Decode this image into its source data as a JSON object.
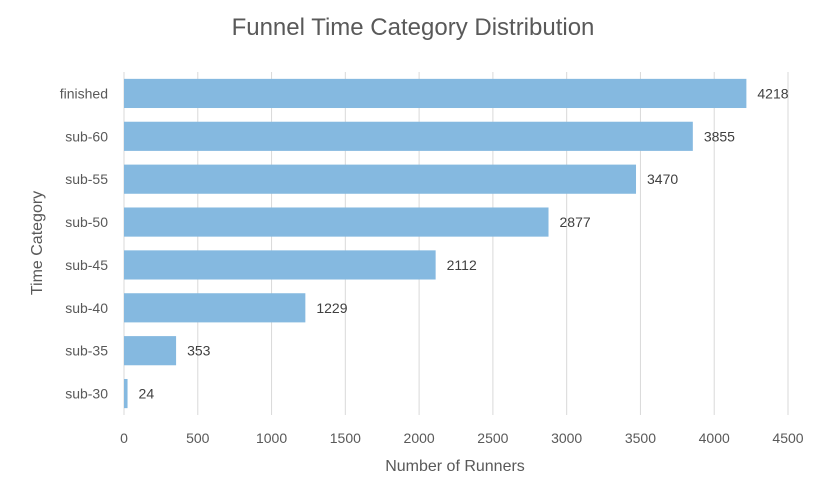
{
  "chart_data": {
    "type": "bar",
    "orientation": "horizontal",
    "title": "Funnel Time Category Distribution",
    "xlabel": "Number of Runners",
    "ylabel": "Time Category",
    "categories": [
      "finished",
      "sub-60",
      "sub-55",
      "sub-50",
      "sub-45",
      "sub-40",
      "sub-35",
      "sub-30"
    ],
    "values": [
      4218,
      3855,
      3470,
      2877,
      2112,
      1229,
      353,
      24
    ],
    "xlim": [
      0,
      4500
    ],
    "xticks": [
      0,
      500,
      1000,
      1500,
      2000,
      2500,
      3000,
      3500,
      4000,
      4500
    ],
    "grid": "vertical",
    "bar_color": "#85b9e0",
    "data_labels": true
  }
}
